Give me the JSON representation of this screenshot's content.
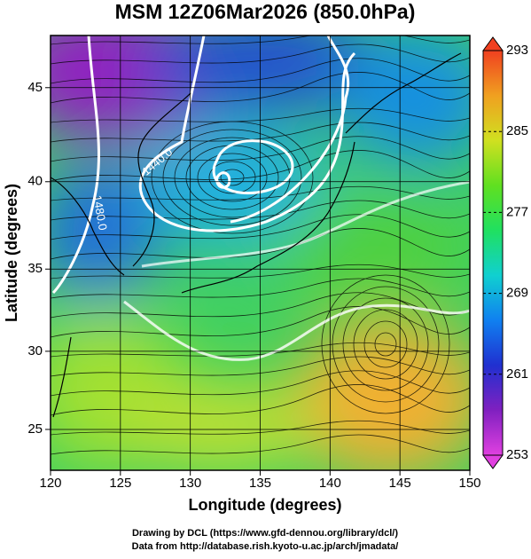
{
  "chart_data": {
    "type": "field",
    "projection": "mercator",
    "title": "MSM 12Z06Mar2026 (850.0hPa)",
    "x_label": "Longitude (degrees)",
    "y_label": "Latitude  (degrees)",
    "xlim": [
      120,
      150
    ],
    "xticks": [
      120,
      125,
      130,
      135,
      140,
      145,
      150
    ],
    "ylim": [
      22.3,
      47.6
    ],
    "yticks": [
      25,
      30,
      35,
      40,
      45
    ],
    "grid": true,
    "colorbar": {
      "clim": [
        253,
        293
      ],
      "ticks": [
        253,
        261,
        269,
        277,
        285,
        293
      ],
      "colors": [
        "#e040e0",
        "#8020c0",
        "#2030d0",
        "#1080f0",
        "#10d0d0",
        "#20e060",
        "#60e020",
        "#d0e020",
        "#f0a020",
        "#f04020"
      ]
    },
    "annotations": [
      "1440.0",
      "1480.0"
    ],
    "credits": [
      "Drawing by DCL (https://www.gfd-dennou.org/library/dcl/)",
      "Data from http://database.rish.kyoto-u.ac.jp/arch/jmadata/"
    ]
  }
}
